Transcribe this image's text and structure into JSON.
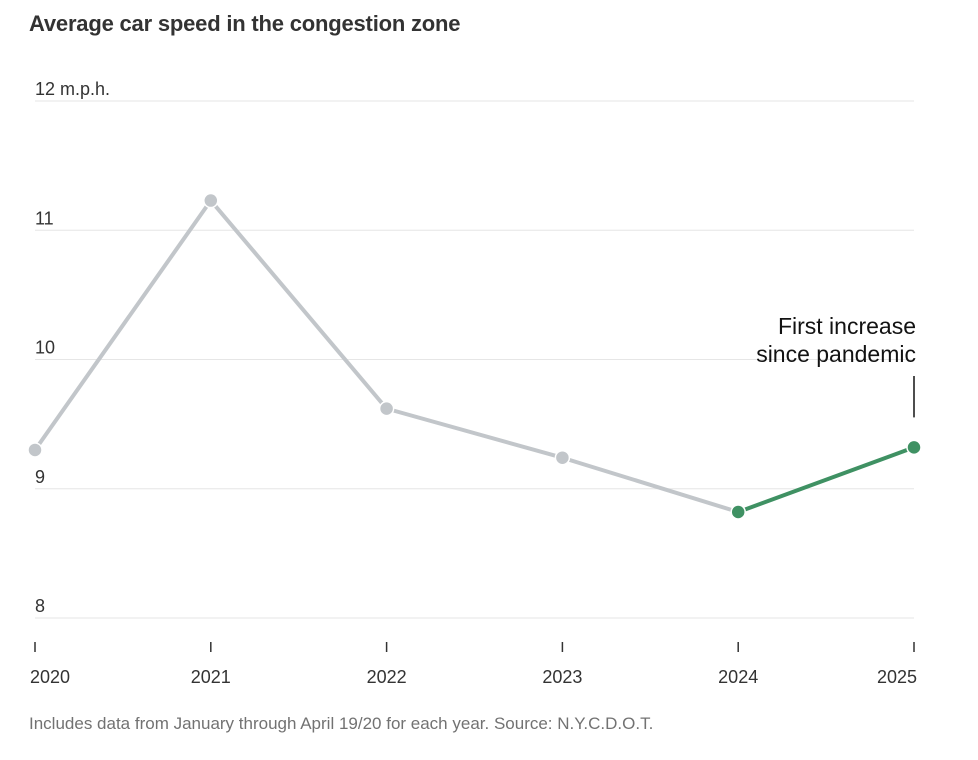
{
  "chart_data": {
    "type": "line",
    "title": "Average car speed in the congestion zone",
    "xlabel": "",
    "ylabel": "",
    "x": [
      2020,
      2021,
      2022,
      2023,
      2024,
      2025
    ],
    "x_tick_labels": [
      "2020",
      "2021",
      "2022",
      "2023",
      "2024",
      "2025"
    ],
    "y_tick_labels": [
      "12 m.p.h.",
      "11",
      "10",
      "9",
      "8"
    ],
    "y_ticks": [
      12,
      11,
      10,
      9,
      8
    ],
    "ylim": [
      8,
      12
    ],
    "series": [
      {
        "values": [
          9.3,
          11.23,
          9.62,
          9.24,
          8.82,
          9.32
        ],
        "color": "#c2c6ca",
        "highlight_from_index": 4,
        "highlight_color": "#3f9163"
      }
    ],
    "grid": true,
    "annotation": {
      "lines": [
        "First increase",
        "since pandemic"
      ],
      "target_x": 2025
    },
    "note": "Includes data from January through April 19/20 for each year. Source: N.Y.C.D.O.T."
  }
}
